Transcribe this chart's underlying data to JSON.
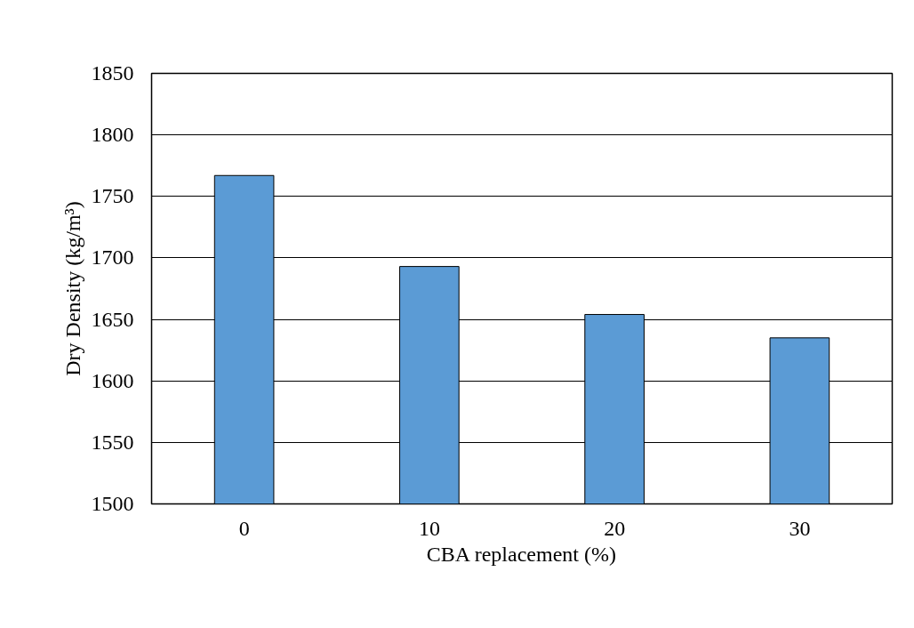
{
  "chart_data": {
    "type": "bar",
    "xlabel": "CBA replacement (%)",
    "ylabel": "Dry Density (kg/m³)",
    "categories": [
      "0",
      "10",
      "20",
      "30"
    ],
    "series": [
      {
        "color": "#5b9bd5",
        "values": [
          1767,
          1693,
          1654,
          1635
        ]
      }
    ],
    "ylim": [
      1500,
      1850
    ],
    "yticks": [
      1500,
      1550,
      1600,
      1650,
      1700,
      1750,
      1800,
      1850
    ],
    "grid": "y"
  }
}
